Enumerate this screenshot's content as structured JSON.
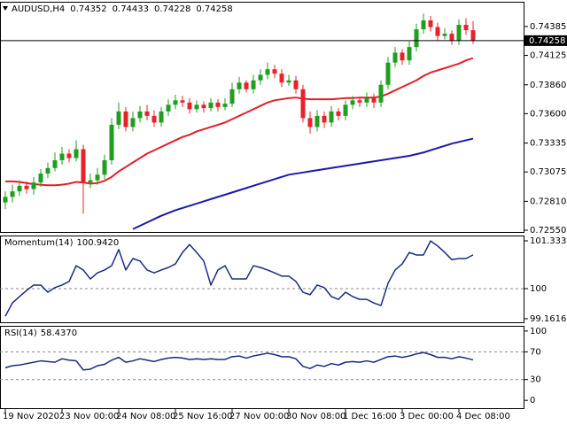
{
  "chart_data": [
    {
      "type": "candlestick",
      "title": "AUDUSD,H4",
      "up_color": "#1f9e1f",
      "down_color": "#e8212a",
      "categories": [
        "19 Nov 2020",
        null,
        null,
        null,
        null,
        null,
        null,
        null,
        "23 Nov 00:00",
        null,
        null,
        null,
        null,
        null,
        null,
        null,
        "24 Nov 08:00",
        null,
        null,
        null,
        null,
        null,
        null,
        null,
        "25 Nov 16:00",
        null,
        null,
        null,
        null,
        null,
        null,
        null,
        "27 Nov 00:00",
        null,
        null,
        null,
        null,
        null,
        null,
        null,
        "30 Nov 08:00",
        null,
        null,
        null,
        null,
        null,
        null,
        null,
        "1 Dec 16:00",
        null,
        null,
        null,
        null,
        null,
        null,
        null,
        "3 Dec 00:00",
        null,
        null,
        null,
        null,
        null,
        null,
        null,
        "4 Dec 08:00",
        null,
        null
      ],
      "open": [
        0.728,
        0.7285,
        0.729,
        0.7295,
        0.7292,
        0.7298,
        0.7306,
        0.7311,
        0.7318,
        0.7324,
        0.732,
        0.7328,
        0.7298,
        0.73,
        0.7305,
        0.7318,
        0.735,
        0.7362,
        0.7348,
        0.7356,
        0.7362,
        0.7358,
        0.7352,
        0.7362,
        0.7368,
        0.7372,
        0.737,
        0.7364,
        0.7368,
        0.7365,
        0.737,
        0.7366,
        0.7369,
        0.7382,
        0.7388,
        0.7382,
        0.739,
        0.7395,
        0.74,
        0.7396,
        0.7388,
        0.739,
        0.7382,
        0.7356,
        0.7348,
        0.7358,
        0.7352,
        0.7362,
        0.7358,
        0.7368,
        0.7372,
        0.737,
        0.7374,
        0.737,
        0.7386,
        0.7406,
        0.7415,
        0.7408,
        0.742,
        0.7436,
        0.7444,
        0.7438,
        0.743,
        0.7432,
        0.7426,
        0.744,
        0.74352
      ],
      "high": [
        0.729,
        0.7296,
        0.73,
        0.7299,
        0.7303,
        0.731,
        0.7316,
        0.7325,
        0.733,
        0.7328,
        0.7336,
        0.7332,
        0.7306,
        0.7311,
        0.7323,
        0.7356,
        0.737,
        0.7366,
        0.7362,
        0.7367,
        0.7368,
        0.7363,
        0.7366,
        0.7373,
        0.7377,
        0.7376,
        0.7374,
        0.7372,
        0.7371,
        0.7374,
        0.7373,
        0.7374,
        0.7388,
        0.7393,
        0.739,
        0.7395,
        0.74,
        0.7406,
        0.7404,
        0.74,
        0.7395,
        0.7394,
        0.7386,
        0.7362,
        0.7363,
        0.7362,
        0.7367,
        0.7365,
        0.7372,
        0.7376,
        0.7375,
        0.7379,
        0.7378,
        0.739,
        0.7411,
        0.742,
        0.7418,
        0.7425,
        0.7441,
        0.745,
        0.7448,
        0.7442,
        0.7437,
        0.7435,
        0.7445,
        0.7446,
        0.74433
      ],
      "low": [
        0.7274,
        0.728,
        0.7286,
        0.7288,
        0.7287,
        0.7294,
        0.7302,
        0.7308,
        0.7314,
        0.7316,
        0.7317,
        0.727,
        0.7293,
        0.7296,
        0.7301,
        0.7314,
        0.7346,
        0.7344,
        0.7344,
        0.7352,
        0.7354,
        0.7348,
        0.7348,
        0.7358,
        0.7364,
        0.7366,
        0.736,
        0.7361,
        0.7361,
        0.7362,
        0.7362,
        0.7363,
        0.7366,
        0.7378,
        0.7379,
        0.7378,
        0.7386,
        0.7391,
        0.7392,
        0.7384,
        0.7385,
        0.7378,
        0.7352,
        0.7342,
        0.7344,
        0.7347,
        0.7348,
        0.7354,
        0.7354,
        0.7364,
        0.7366,
        0.7366,
        0.7365,
        0.7366,
        0.7382,
        0.7402,
        0.7404,
        0.7404,
        0.7416,
        0.7432,
        0.7434,
        0.7426,
        0.7427,
        0.7422,
        0.7422,
        0.7431,
        0.74228
      ],
      "close": [
        0.7285,
        0.729,
        0.7295,
        0.7292,
        0.7298,
        0.7306,
        0.7311,
        0.7318,
        0.7324,
        0.732,
        0.7328,
        0.7298,
        0.73,
        0.7305,
        0.7318,
        0.735,
        0.7362,
        0.7348,
        0.7356,
        0.7362,
        0.7358,
        0.7352,
        0.7362,
        0.7368,
        0.7372,
        0.737,
        0.7364,
        0.7368,
        0.7365,
        0.737,
        0.7366,
        0.7369,
        0.7382,
        0.7388,
        0.7382,
        0.739,
        0.7395,
        0.74,
        0.7396,
        0.7388,
        0.739,
        0.7382,
        0.7356,
        0.7348,
        0.7358,
        0.7352,
        0.7362,
        0.7358,
        0.7368,
        0.7372,
        0.737,
        0.7374,
        0.737,
        0.7386,
        0.7406,
        0.7415,
        0.7408,
        0.742,
        0.7436,
        0.7444,
        0.7438,
        0.743,
        0.7432,
        0.7426,
        0.744,
        0.74352,
        0.74258
      ],
      "series": [
        {
          "color": "#e41e26",
          "values": [
            0.7299,
            0.7299,
            0.72985,
            0.72975,
            0.72965,
            0.7296,
            0.72955,
            0.72955,
            0.7296,
            0.7297,
            0.72985,
            0.7298,
            0.7297,
            0.72975,
            0.72995,
            0.7303,
            0.7308,
            0.7312,
            0.7316,
            0.732,
            0.7324,
            0.7327,
            0.733,
            0.7333,
            0.7336,
            0.7339,
            0.7341,
            0.7344,
            0.7346,
            0.7348,
            0.735,
            0.7352,
            0.7355,
            0.7358,
            0.7361,
            0.7364,
            0.7367,
            0.737,
            0.7372,
            0.7373,
            0.7374,
            0.73745,
            0.73735,
            0.7373,
            0.7373,
            0.7373,
            0.7373,
            0.73735,
            0.7374,
            0.7374,
            0.73745,
            0.73745,
            0.73745,
            0.73755,
            0.7378,
            0.7381,
            0.7384,
            0.7387,
            0.739,
            0.7394,
            0.7397,
            0.7399,
            0.7401,
            0.7403,
            0.7405,
            0.7408,
            0.741
          ]
        },
        {
          "color": "#1a1aa8",
          "values": [
            null,
            null,
            null,
            null,
            null,
            null,
            null,
            null,
            null,
            null,
            null,
            null,
            null,
            null,
            null,
            null,
            null,
            null,
            0.7256,
            0.7259,
            0.7262,
            0.7265,
            0.7268,
            0.72705,
            0.7273,
            0.7275,
            0.7277,
            0.7279,
            0.7281,
            0.7283,
            0.7285,
            0.7287,
            0.7289,
            0.7291,
            0.7293,
            0.7295,
            0.7297,
            0.7299,
            0.7301,
            0.7303,
            0.7305,
            0.7306,
            0.7307,
            0.7308,
            0.7309,
            0.731,
            0.7311,
            0.7312,
            0.7313,
            0.7314,
            0.7315,
            0.7316,
            0.7317,
            0.7318,
            0.7319,
            0.732,
            0.7321,
            0.7322,
            0.73235,
            0.7325,
            0.7327,
            0.7329,
            0.7331,
            0.7333,
            0.73345,
            0.7336,
            0.73375
          ]
        }
      ],
      "ylim": [
        0.72534,
        0.74608
      ],
      "yticks": [
        0.74385,
        0.74125,
        {
          "value": 0.7386,
          "label": "0.73860"
        },
        {
          "value": 0.736,
          "label": "0.73600"
        },
        0.73335,
        0.73075,
        {
          "value": 0.7281,
          "label": "0.72810"
        },
        {
          "value": 0.7255,
          "label": "0.72550"
        }
      ]
    },
    {
      "type": "line",
      "title": "Momentum(14)",
      "current": {
        "value": 100.942,
        "label": "100.9420"
      },
      "color": "#1b2a80",
      "values": [
        99.23,
        99.6,
        99.78,
        99.95,
        100.1,
        100.1,
        99.9,
        100.03,
        100.1,
        100.2,
        100.64,
        100.52,
        100.27,
        100.44,
        100.52,
        100.64,
        101.09,
        100.52,
        100.84,
        100.77,
        100.52,
        100.44,
        100.52,
        100.59,
        100.69,
        101.01,
        101.23,
        101.01,
        100.77,
        100.1,
        100.52,
        100.64,
        100.27,
        100.27,
        100.27,
        100.64,
        100.59,
        100.52,
        100.44,
        100.35,
        100.35,
        100.2,
        99.9,
        99.83,
        100.1,
        100.03,
        99.78,
        99.7,
        99.9,
        99.78,
        99.7,
        99.7,
        99.6,
        99.53,
        100.15,
        100.52,
        100.69,
        101.01,
        100.94,
        100.94,
        101.33,
        101.19,
        101.01,
        100.81,
        100.84,
        100.84,
        100.942
      ],
      "ylim": [
        99.061,
        101.482
      ],
      "yticks": [
        101.3337,
        100,
        99.1616
      ],
      "levels": [
        100
      ]
    },
    {
      "type": "line",
      "title": "RSI(14)",
      "current": {
        "value": 58.437,
        "label": "58.4370"
      },
      "color": "#1b2a80",
      "values": [
        47,
        50,
        51,
        53,
        55,
        57,
        56,
        55,
        60,
        58,
        57,
        44,
        45,
        50,
        52,
        58,
        62,
        55,
        57,
        60,
        58,
        56,
        59,
        61,
        62,
        61,
        59,
        60,
        59,
        60,
        59,
        59,
        63,
        64,
        61,
        64,
        66,
        68,
        66,
        63,
        63,
        60,
        49,
        46,
        51,
        49,
        53,
        51,
        55,
        56,
        55,
        57,
        55,
        59,
        63,
        64,
        62,
        64,
        67,
        69,
        66,
        62,
        62,
        60,
        63,
        61,
        58.437
      ],
      "ylim": [
        -11.25,
        107.5
      ],
      "yticks": [
        100,
        70,
        30,
        0
      ],
      "levels": [
        70,
        30
      ]
    }
  ]
}
